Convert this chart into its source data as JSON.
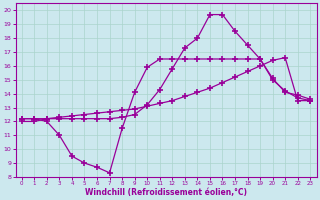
{
  "xlabel": "Windchill (Refroidissement éolien,°C)",
  "background_color": "#cce8ee",
  "line_color": "#990099",
  "grid_color": "#aad4cc",
  "xlim": [
    -0.5,
    23.5
  ],
  "ylim": [
    8,
    20.5
  ],
  "xticks": [
    0,
    1,
    2,
    3,
    4,
    5,
    6,
    7,
    8,
    9,
    10,
    11,
    12,
    13,
    14,
    15,
    16,
    17,
    18,
    19,
    20,
    21,
    22,
    23
  ],
  "yticks": [
    8,
    9,
    10,
    11,
    12,
    13,
    14,
    15,
    16,
    17,
    18,
    19,
    20
  ],
  "line1_x": [
    0,
    1,
    2,
    3,
    4,
    5,
    6,
    7,
    8,
    9,
    10,
    11,
    12,
    13,
    14,
    15,
    16,
    17,
    18,
    19,
    20,
    21,
    22,
    23
  ],
  "line1_y": [
    12.2,
    12.2,
    12.0,
    11.0,
    9.5,
    9.0,
    8.7,
    8.3,
    11.5,
    14.1,
    15.9,
    16.5,
    16.5,
    16.5,
    16.5,
    16.5,
    16.5,
    16.5,
    16.5,
    16.5,
    15.0,
    14.2,
    13.7,
    13.5
  ],
  "line2_x": [
    0,
    1,
    2,
    3,
    4,
    5,
    6,
    7,
    8,
    9,
    10,
    11,
    12,
    13,
    14,
    15,
    16,
    17,
    18,
    19,
    20,
    21,
    22,
    23
  ],
  "line2_y": [
    12.0,
    12.0,
    12.2,
    12.3,
    12.4,
    12.5,
    12.6,
    12.7,
    12.8,
    12.9,
    13.1,
    13.3,
    13.5,
    13.8,
    14.1,
    14.4,
    14.8,
    15.2,
    15.6,
    16.0,
    16.4,
    16.6,
    13.5,
    13.5
  ],
  "line3_x": [
    0,
    1,
    2,
    3,
    4,
    5,
    6,
    7,
    8,
    9,
    10,
    11,
    12,
    13,
    14,
    15,
    16,
    17,
    18,
    19,
    20,
    21,
    22,
    23
  ],
  "line3_y": [
    12.2,
    12.2,
    12.2,
    12.2,
    12.2,
    12.2,
    12.2,
    12.2,
    12.3,
    12.5,
    13.2,
    14.3,
    15.8,
    17.3,
    18.0,
    19.7,
    19.7,
    18.5,
    17.5,
    16.5,
    15.1,
    14.1,
    13.9,
    13.6
  ]
}
